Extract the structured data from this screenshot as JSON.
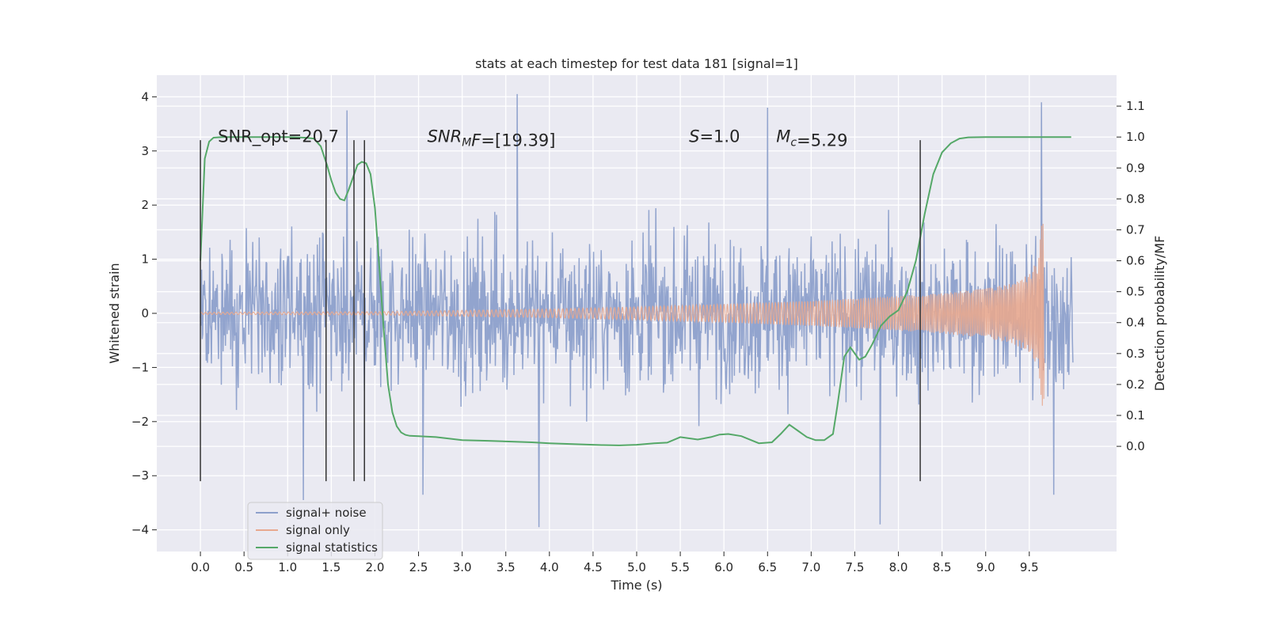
{
  "chart_data": {
    "type": "line",
    "title": "stats at each timestep for test data 181 [signal=1]",
    "xlabel": "Time (s)",
    "ylabel": "Whitened strain",
    "ylabel_right": "Detection probability/MF",
    "xlim": [
      -0.5,
      10.5
    ],
    "ylim": [
      -4.4,
      4.4
    ],
    "ylim_right": [
      -0.34,
      1.2
    ],
    "x_ticks": [
      0.0,
      0.5,
      1.0,
      1.5,
      2.0,
      2.5,
      3.0,
      3.5,
      4.0,
      4.5,
      5.0,
      5.5,
      6.0,
      6.5,
      7.0,
      7.5,
      8.0,
      8.5,
      9.0,
      9.5
    ],
    "x_tick_labels": [
      "0.0",
      "0.5",
      "1.0",
      "1.5",
      "2.0",
      "2.5",
      "3.0",
      "3.5",
      "4.0",
      "4.5",
      "5.0",
      "5.5",
      "6.0",
      "6.5",
      "7.0",
      "7.5",
      "8.0",
      "8.5",
      "9.0",
      "9.5"
    ],
    "y_ticks": [
      4,
      3,
      2,
      1,
      0,
      -1,
      -2,
      -3,
      -4
    ],
    "y_tick_labels": [
      "4",
      "3",
      "2",
      "1",
      "0",
      "−1",
      "−2",
      "−3",
      "−4"
    ],
    "y_right_ticks": [
      1.1,
      1.0,
      0.9,
      0.8,
      0.7,
      0.6,
      0.5,
      0.4,
      0.3,
      0.2,
      0.1,
      0.0
    ],
    "y_right_tick_labels": [
      "1.1",
      "1.0",
      "0.9",
      "0.8",
      "0.7",
      "0.6",
      "0.5",
      "0.4",
      "0.3",
      "0.2",
      "0.1",
      "0.0"
    ],
    "grid": true,
    "legend_position": "lower-left",
    "series": [
      {
        "name": "signal+ noise",
        "color": "#8da0cb",
        "description_type": "noisy strain, roughly within ±2.5 with spikes up to ±4",
        "x_range": [
          0.0,
          10.0
        ],
        "envelope_y": [
          -2.5,
          2.5
        ],
        "spikes": [
          {
            "x": 3.63,
            "y": 4.05
          },
          {
            "x": 9.64,
            "y": 3.9
          },
          {
            "x": 6.5,
            "y": 3.8
          },
          {
            "x": 1.68,
            "y": 3.75
          },
          {
            "x": 3.88,
            "y": -3.95
          },
          {
            "x": 7.79,
            "y": -3.9
          },
          {
            "x": 1.18,
            "y": -3.45
          },
          {
            "x": 2.55,
            "y": -3.35
          },
          {
            "x": 9.78,
            "y": -3.35
          }
        ]
      },
      {
        "name": "signal only",
        "color": "#e8a98f",
        "description_type": "chirp with growing amplitude ending at merger",
        "x_range": [
          0.0,
          9.67
        ],
        "amplitude": {
          "x": [
            0.0,
            2.0,
            4.0,
            5.0,
            6.0,
            7.0,
            8.0,
            8.5,
            9.0,
            9.3,
            9.5,
            9.6,
            9.65
          ],
          "a": [
            0.02,
            0.03,
            0.08,
            0.12,
            0.17,
            0.23,
            0.32,
            0.37,
            0.46,
            0.55,
            0.72,
            1.0,
            1.75
          ]
        }
      },
      {
        "name": "signal statistics",
        "color": "#55a868",
        "axis": "right",
        "x": [
          0.0,
          0.05,
          0.1,
          0.15,
          0.25,
          0.4,
          0.6,
          0.8,
          1.0,
          1.2,
          1.3,
          1.38,
          1.45,
          1.5,
          1.55,
          1.6,
          1.65,
          1.7,
          1.75,
          1.8,
          1.85,
          1.9,
          1.95,
          2.0,
          2.05,
          2.1,
          2.15,
          2.2,
          2.25,
          2.3,
          2.35,
          2.4,
          2.5,
          2.7,
          3.0,
          3.3,
          3.6,
          3.8,
          4.0,
          4.3,
          4.6,
          4.8,
          5.0,
          5.2,
          5.35,
          5.5,
          5.7,
          5.85,
          5.95,
          6.05,
          6.2,
          6.4,
          6.55,
          6.65,
          6.75,
          6.85,
          6.95,
          7.05,
          7.15,
          7.25,
          7.3,
          7.38,
          7.45,
          7.55,
          7.62,
          7.7,
          7.8,
          7.9,
          8.0,
          8.1,
          8.2,
          8.3,
          8.4,
          8.5,
          8.6,
          8.7,
          8.8,
          9.0,
          9.5,
          9.98
        ],
        "y": [
          0.6,
          0.93,
          0.985,
          0.998,
          1.0,
          1.0,
          1.0,
          1.0,
          1.0,
          0.998,
          0.995,
          0.97,
          0.91,
          0.86,
          0.82,
          0.8,
          0.795,
          0.83,
          0.87,
          0.91,
          0.92,
          0.915,
          0.88,
          0.77,
          0.58,
          0.38,
          0.2,
          0.11,
          0.065,
          0.045,
          0.037,
          0.034,
          0.033,
          0.03,
          0.02,
          0.018,
          0.015,
          0.013,
          0.01,
          0.007,
          0.004,
          0.003,
          0.005,
          0.01,
          0.012,
          0.03,
          0.022,
          0.03,
          0.038,
          0.04,
          0.033,
          0.01,
          0.013,
          0.04,
          0.07,
          0.05,
          0.03,
          0.02,
          0.02,
          0.04,
          0.13,
          0.29,
          0.32,
          0.28,
          0.29,
          0.33,
          0.39,
          0.42,
          0.44,
          0.5,
          0.6,
          0.75,
          0.88,
          0.95,
          0.98,
          0.995,
          0.999,
          1.0,
          1.0,
          1.0
        ]
      }
    ],
    "vlines": {
      "color": "#333333",
      "x": [
        0.0,
        1.44,
        1.76,
        1.88,
        8.25
      ],
      "y_range": [
        -3.1,
        3.2
      ]
    },
    "annotations": [
      {
        "x": 0.2,
        "y": 3.25,
        "parts": [
          {
            "t": "SNR_opt=20.7",
            "style": "normal"
          }
        ]
      },
      {
        "x": 2.6,
        "y": 3.25,
        "parts": [
          {
            "t": "SNR",
            "style": "italic"
          },
          {
            "t": "M",
            "style": "sub-italic"
          },
          {
            "t": "F",
            "style": "italic"
          },
          {
            "t": "=[19.39]",
            "style": "normal"
          }
        ]
      },
      {
        "x": 5.6,
        "y": 3.25,
        "parts": [
          {
            "t": "S",
            "style": "italic"
          },
          {
            "t": "=1.0",
            "style": "normal"
          }
        ]
      },
      {
        "x": 6.6,
        "y": 3.25,
        "parts": [
          {
            "t": "M",
            "style": "italic"
          },
          {
            "t": "c",
            "style": "sub-italic"
          },
          {
            "t": "=5.29",
            "style": "normal"
          }
        ]
      }
    ],
    "colors": {
      "plot_background": "#eaeaf2",
      "grid": "#ffffff",
      "text": "#262626"
    }
  }
}
